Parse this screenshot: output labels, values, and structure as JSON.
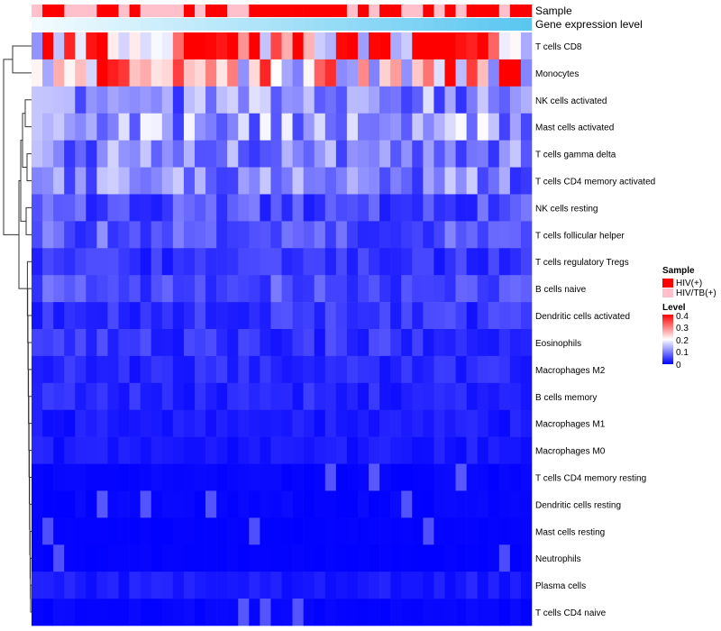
{
  "chart_data": {
    "type": "heatmap",
    "n_columns": 46,
    "annotations": [
      {
        "name": "Sample",
        "label": "Sample"
      },
      {
        "name": "Gene expression level",
        "label": "Gene expression level"
      }
    ],
    "sample_groups": [
      {
        "name": "HIV(+)",
        "color": "#ff0000"
      },
      {
        "name": "HIV/TB(+)",
        "color": "#ffc0cb"
      }
    ],
    "sample_sequence": [
      "HIV/TB(+)",
      "HIV(+)",
      "HIV(+)",
      "HIV/TB(+)",
      "HIV/TB(+)",
      "HIV/TB(+)",
      "HIV(+)",
      "HIV(+)",
      "HIV/TB(+)",
      "HIV(+)",
      "HIV/TB(+)",
      "HIV/TB(+)",
      "HIV/TB(+)",
      "HIV/TB(+)",
      "HIV(+)",
      "HIV/TB(+)",
      "HIV(+)",
      "HIV(+)",
      "HIV/TB(+)",
      "HIV/TB(+)",
      "HIV(+)",
      "HIV(+)",
      "HIV(+)",
      "HIV(+)",
      "HIV(+)",
      "HIV(+)",
      "HIV(+)",
      "HIV(+)",
      "HIV(+)",
      "HIV/TB(+)",
      "HIV(+)",
      "HIV/TB(+)",
      "HIV(+)",
      "HIV(+)",
      "HIV/TB(+)",
      "HIV/TB(+)",
      "HIV(+)",
      "HIV/TB(+)",
      "HIV(+)",
      "HIV/TB(+)",
      "HIV(+)",
      "HIV(+)",
      "HIV(+)",
      "HIV/TB(+)",
      "HIV(+)",
      "HIV(+)"
    ],
    "expression_gradient": {
      "from": "#f2fbff",
      "to": "#5bc7f1"
    },
    "rows": [
      "T cells CD8",
      "Monocytes",
      "NK cells activated",
      "Mast cells activated",
      "T cells gamma delta",
      "T cells CD4 memory activated",
      "NK cells resting",
      "T cells follicular helper",
      "T cells regulatory  Tregs",
      "B cells naive",
      "Dendritic cells activated",
      "Eosinophils",
      "Macrophages M2",
      "B cells memory",
      "Macrophages M1",
      "Macrophages M0",
      "T cells CD4 memory resting",
      "Dendritic cells resting",
      "Mast cells resting",
      "Neutrophils",
      "Plasma cells",
      "T cells CD4 naive"
    ],
    "row_mean_levels": [
      0.33,
      0.27,
      0.11,
      0.12,
      0.1,
      0.1,
      0.06,
      0.07,
      0.04,
      0.06,
      0.04,
      0.04,
      0.03,
      0.03,
      0.02,
      0.02,
      0.01,
      0.01,
      0.005,
      0.005,
      0.02,
      0.01
    ],
    "color_scale": {
      "title": "Level",
      "min": 0,
      "max": 0.4,
      "ticks": [
        "0.4",
        "0.3",
        "0.2",
        "0.1",
        "0"
      ],
      "colors": [
        "#0000ff",
        "#ffffff",
        "#ff0000"
      ]
    }
  }
}
